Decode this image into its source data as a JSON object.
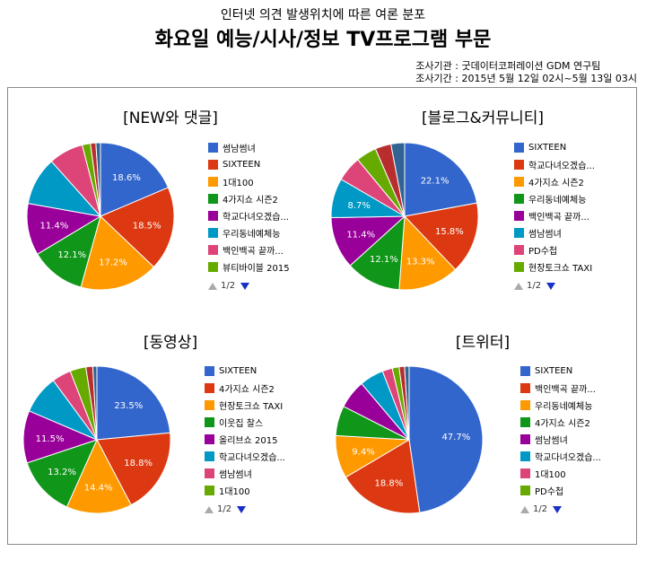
{
  "header": {
    "subtitle": "인터넷 의견 발생위치에 따른 여론 분포",
    "title": "화요일 예능/시사/정보 TV프로그램  부문",
    "meta_org": "조사기관 : 굿데이터코퍼레이션 GDM 연구팀",
    "meta_period": "조사기간 : 2015년 5월 12일 02시~5월 13일 03시"
  },
  "colors": [
    "#3366cc",
    "#dc3912",
    "#ff9900",
    "#109618",
    "#990099",
    "#0099c6",
    "#dd4477",
    "#66aa00",
    "#b82e2e",
    "#316395",
    "#994499",
    "#22aa99",
    "#aaaa11"
  ],
  "chart_data": [
    {
      "type": "pie",
      "title": "[NEW와 댓글]",
      "legend": [
        "썸남썸녀",
        "SIXTEEN",
        "1대100",
        "4가지쇼 시즌2",
        "학교다녀오겠습...",
        "우리동네예체능",
        "백인백곡 끝까...",
        "뷰티바이블 2015"
      ],
      "slice_values": [
        18.6,
        18.5,
        17.2,
        12.1,
        11.4,
        10.6,
        7.6,
        1.8,
        1.2,
        1.0
      ],
      "slice_labels": [
        "18.6%",
        "18.5%",
        "17.2%",
        "12.1%",
        "11.4%",
        "",
        "",
        "",
        "",
        ""
      ],
      "pager": "1/2"
    },
    {
      "type": "pie",
      "title": "[블로그&커뮤니티]",
      "legend": [
        "SIXTEEN",
        "학교다녀오겠습...",
        "4가지쇼 시즌2",
        "우리동네예체능",
        "백인백곡 끝까...",
        "썸남썸녀",
        "PD수첩",
        "현장토크쇼 TAXI"
      ],
      "slice_values": [
        22.1,
        15.8,
        13.3,
        12.1,
        11.4,
        8.7,
        5.6,
        4.5,
        3.5,
        3.0
      ],
      "slice_labels": [
        "22.1%",
        "15.8%",
        "13.3%",
        "12.1%",
        "11.4%",
        "8.7%",
        "",
        "",
        "",
        ""
      ],
      "pager": "1/2"
    },
    {
      "type": "pie",
      "title": "[동영상]",
      "legend": [
        "SIXTEEN",
        "4가지쇼 시즌2",
        "현장토크쇼 TAXI",
        "이웃집 찰스",
        "올리브쇼 2015",
        "학교다녀오겠습...",
        "썸남썸녀",
        "1대100"
      ],
      "slice_values": [
        23.5,
        18.8,
        14.4,
        13.2,
        11.5,
        8.5,
        4.2,
        3.5,
        1.5,
        0.9
      ],
      "slice_labels": [
        "23.5%",
        "18.8%",
        "14.4%",
        "13.2%",
        "11.5%",
        "",
        "",
        "",
        "",
        ""
      ],
      "pager": "1/2"
    },
    {
      "type": "pie",
      "title": "[트위터]",
      "legend": [
        "SIXTEEN",
        "백인백곡 끝까...",
        "우리동네예체능",
        "4가지쇼 시즌2",
        "썸남썸녀",
        "학교다녀오겠습...",
        "1대100",
        "PD수첩"
      ],
      "slice_values": [
        47.7,
        18.8,
        9.4,
        6.6,
        6.3,
        5.3,
        2.2,
        1.5,
        1.2,
        1.0
      ],
      "slice_labels": [
        "47.7%",
        "18.8%",
        "9.4%",
        "",
        "",
        "",
        "",
        "",
        "",
        ""
      ],
      "pager": "1/2"
    }
  ]
}
